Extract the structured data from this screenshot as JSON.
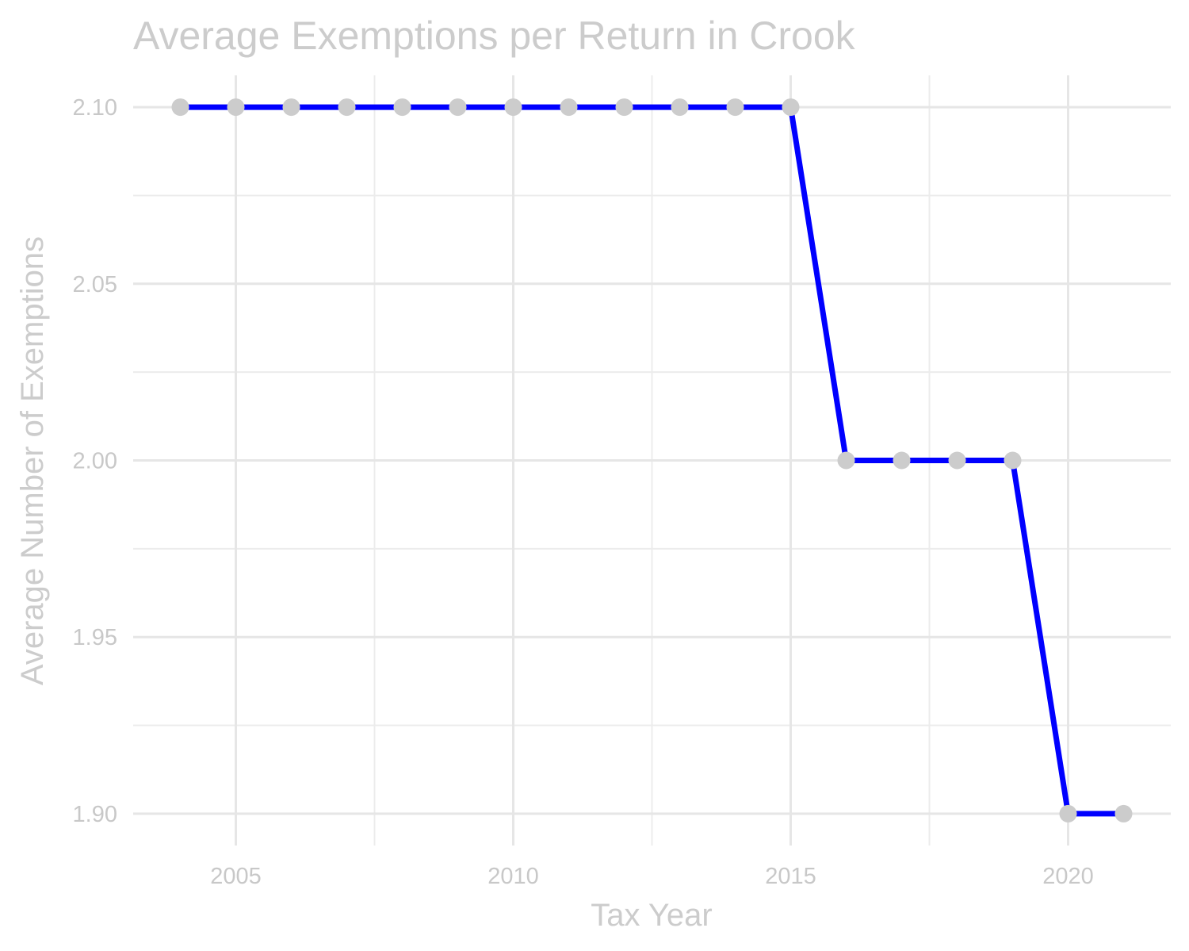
{
  "chart_data": {
    "type": "line",
    "title": "Average Exemptions per Return in Crook",
    "xlabel": "Tax Year",
    "ylabel": "Average Number of Exemptions",
    "x": [
      2004,
      2005,
      2006,
      2007,
      2008,
      2009,
      2010,
      2011,
      2012,
      2013,
      2014,
      2015,
      2016,
      2017,
      2018,
      2019,
      2020,
      2021
    ],
    "series": [
      {
        "values": [
          2.1,
          2.1,
          2.1,
          2.1,
          2.1,
          2.1,
          2.1,
          2.1,
          2.1,
          2.1,
          2.1,
          2.1,
          2.0,
          2.0,
          2.0,
          2.0,
          1.9,
          1.9
        ]
      }
    ],
    "xlim": [
      2003.15,
      2021.85
    ],
    "ylim": [
      1.891,
      2.109
    ],
    "x_ticks": [
      2005,
      2010,
      2015,
      2020
    ],
    "x_tick_labels": [
      "2005",
      "2010",
      "2015",
      "2020"
    ],
    "y_ticks": [
      1.9,
      1.95,
      2.0,
      2.05,
      2.1
    ],
    "y_tick_labels": [
      "1.90",
      "1.95",
      "2.00",
      "2.05",
      "2.10"
    ],
    "x_minor_ticks": [
      2007.5,
      2012.5,
      2017.5
    ],
    "y_minor_ticks": [
      1.925,
      1.975,
      2.025,
      2.075
    ],
    "grid": true,
    "legend": "none",
    "colors": {
      "line": "#0000ff",
      "points": "#cccccc",
      "text": "#cccccc",
      "grid": "#e6e6e6"
    }
  }
}
